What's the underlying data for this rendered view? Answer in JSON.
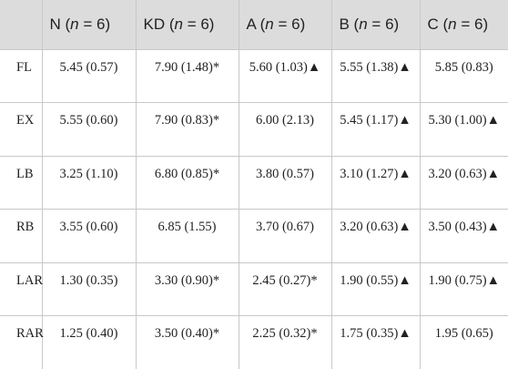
{
  "table": {
    "headers": [
      {
        "group": "",
        "label": "",
        "n_close": ""
      },
      {
        "group": "N",
        "label": "N (",
        "n_close": " = 6)"
      },
      {
        "group": "KD",
        "label": "KD (",
        "n_close": " = 6)"
      },
      {
        "group": "A",
        "label": "A (",
        "n_close": " = 6)"
      },
      {
        "group": "B",
        "label": "B (",
        "n_close": " = 6)"
      },
      {
        "group": "C",
        "label": "C (",
        "n_close": " = 6)"
      }
    ],
    "n_symbol": "n",
    "rows": [
      {
        "label": "FL",
        "cells": [
          "5.45 (0.57)",
          "7.90 (1.48)*",
          "5.60 (1.03)▲",
          "5.55 (1.38)▲",
          "5.85 (0.83)"
        ]
      },
      {
        "label": "EX",
        "cells": [
          "5.55 (0.60)",
          "7.90 (0.83)*",
          "6.00 (2.13)",
          "5.45 (1.17)▲",
          "5.30 (1.00)▲"
        ]
      },
      {
        "label": "LB",
        "cells": [
          "3.25 (1.10)",
          "6.80 (0.85)*",
          "3.80 (0.57)",
          "3.10 (1.27)▲",
          "3.20 (0.63)▲"
        ]
      },
      {
        "label": "RB",
        "cells": [
          "3.55 (0.60)",
          "6.85 (1.55)",
          "3.70 (0.67)",
          "3.20 (0.63)▲",
          "3.50 (0.43)▲"
        ]
      },
      {
        "label": "LAR",
        "cells": [
          "1.30 (0.35)",
          "3.30 (0.90)*",
          "2.45 (0.27)*",
          "1.90 (0.55)▲",
          "1.90 (0.75)▲"
        ]
      },
      {
        "label": "RAR",
        "cells": [
          "1.25 (0.40)",
          "3.50 (0.40)*",
          "2.25 (0.32)*",
          "1.75 (0.35)▲",
          "1.95 (0.65)"
        ]
      }
    ]
  }
}
